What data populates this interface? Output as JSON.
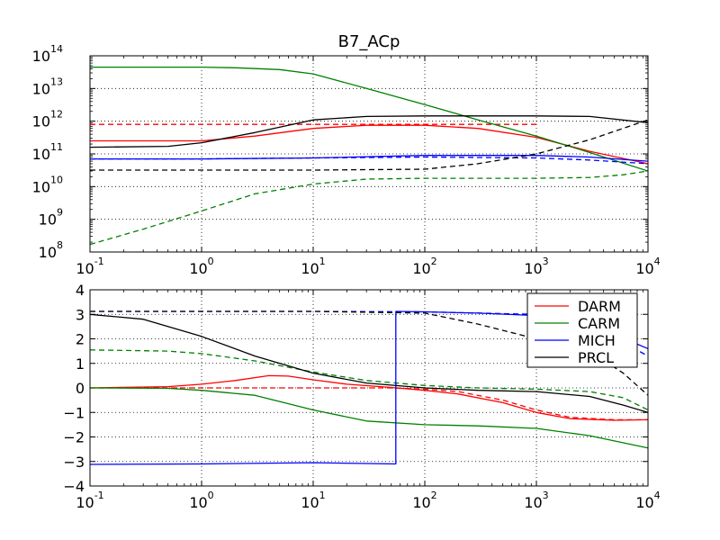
{
  "chart_data": [
    {
      "type": "line",
      "title": "B7_ACp",
      "xscale": "log",
      "yscale": "log",
      "xlim": [
        0.1,
        10000
      ],
      "ylim": [
        100000000.0,
        100000000000000.0
      ],
      "grid": true,
      "x_ticks": [
        {
          "base": "10",
          "exp": "-1"
        },
        {
          "base": "10",
          "exp": "0"
        },
        {
          "base": "10",
          "exp": "1"
        },
        {
          "base": "10",
          "exp": "2"
        },
        {
          "base": "10",
          "exp": "3"
        },
        {
          "base": "10",
          "exp": "4"
        }
      ],
      "y_ticks": [
        {
          "base": "10",
          "exp": "8"
        },
        {
          "base": "10",
          "exp": "9"
        },
        {
          "base": "10",
          "exp": "10"
        },
        {
          "base": "10",
          "exp": "11"
        },
        {
          "base": "10",
          "exp": "12"
        },
        {
          "base": "10",
          "exp": "13"
        },
        {
          "base": "10",
          "exp": "14"
        }
      ],
      "series": [
        {
          "name": "DARM",
          "color": "#ff0000",
          "style": "solid",
          "points": [
            [
              0.1,
              250000000000.0
            ],
            [
              1,
              250000000000.0
            ],
            [
              3,
              350000000000.0
            ],
            [
              10,
              600000000000.0
            ],
            [
              30,
              750000000000.0
            ],
            [
              100,
              750000000000.0
            ],
            [
              300,
              600000000000.0
            ],
            [
              1000,
              320000000000.0
            ],
            [
              3000,
              120000000000.0
            ],
            [
              10000,
              50000000000.0
            ]
          ]
        },
        {
          "name": "DARM",
          "color": "#ff0000",
          "style": "dashed",
          "points": [
            [
              0.1,
              800000000000.0
            ],
            [
              1,
              800000000000.0
            ],
            [
              10,
              800000000000.0
            ],
            [
              100,
              800000000000.0
            ],
            [
              1000,
              800000000000.0
            ]
          ]
        },
        {
          "name": "CARM",
          "color": "#008000",
          "style": "solid",
          "points": [
            [
              0.1,
              45000000000000.0
            ],
            [
              1,
              45000000000000.0
            ],
            [
              2,
              43000000000000.0
            ],
            [
              5,
              38000000000000.0
            ],
            [
              10,
              28000000000000.0
            ],
            [
              30,
              10000000000000.0
            ],
            [
              100,
              3200000000000.0
            ],
            [
              300,
              1100000000000.0
            ],
            [
              1000,
              350000000000.0
            ],
            [
              3000,
              110000000000.0
            ],
            [
              10000,
              30000000000.0
            ]
          ]
        },
        {
          "name": "CARM",
          "color": "#008000",
          "style": "dashed",
          "points": [
            [
              0.1,
              170000000.0
            ],
            [
              0.3,
              500000000.0
            ],
            [
              1,
              1800000000.0
            ],
            [
              3,
              6000000000.0
            ],
            [
              10,
              12000000000.0
            ],
            [
              30,
              17000000000.0
            ],
            [
              100,
              18000000000.0
            ],
            [
              1000,
              18000000000.0
            ],
            [
              3000,
              19000000000.0
            ],
            [
              6000,
              23000000000.0
            ],
            [
              10000,
              30000000000.0
            ]
          ]
        },
        {
          "name": "MICH",
          "color": "#0000ff",
          "style": "solid",
          "points": [
            [
              0.1,
              70000000000.0
            ],
            [
              1,
              70000000000.0
            ],
            [
              10,
              75000000000.0
            ],
            [
              100,
              90000000000.0
            ],
            [
              1000,
              90000000000.0
            ],
            [
              3000,
              80000000000.0
            ],
            [
              10000,
              60000000000.0
            ]
          ]
        },
        {
          "name": "MICH",
          "color": "#0000ff",
          "style": "dashed",
          "points": [
            [
              0.1,
              70000000000.0
            ],
            [
              1,
              70000000000.0
            ],
            [
              10,
              75000000000.0
            ],
            [
              100,
              80000000000.0
            ],
            [
              1000,
              75000000000.0
            ],
            [
              3000,
              65000000000.0
            ],
            [
              10000,
              50000000000.0
            ]
          ]
        },
        {
          "name": "PRCL",
          "color": "#000000",
          "style": "solid",
          "points": [
            [
              0.1,
              160000000000.0
            ],
            [
              0.5,
              170000000000.0
            ],
            [
              1,
              220000000000.0
            ],
            [
              3,
              450000000000.0
            ],
            [
              10,
              1100000000000.0
            ],
            [
              30,
              1400000000000.0
            ],
            [
              100,
              1450000000000.0
            ],
            [
              1000,
              1450000000000.0
            ],
            [
              3000,
              1400000000000.0
            ],
            [
              10000,
              900000000000.0
            ]
          ]
        },
        {
          "name": "PRCL",
          "color": "#000000",
          "style": "dashed",
          "points": [
            [
              0.1,
              32000000000.0
            ],
            [
              10,
              32000000000.0
            ],
            [
              100,
              34000000000.0
            ],
            [
              300,
              50000000000.0
            ],
            [
              1000,
              100000000000.0
            ],
            [
              3000,
              270000000000.0
            ],
            [
              10000,
              1100000000000.0
            ]
          ]
        }
      ]
    },
    {
      "type": "line",
      "xscale": "log",
      "yscale": "linear",
      "xlim": [
        0.1,
        10000
      ],
      "ylim": [
        -4,
        4
      ],
      "grid": true,
      "legend_position": "top-right",
      "legend": [
        {
          "name": "DARM",
          "color": "#ff0000"
        },
        {
          "name": "CARM",
          "color": "#008000"
        },
        {
          "name": "MICH",
          "color": "#0000ff"
        },
        {
          "name": "PRCL",
          "color": "#000000"
        }
      ],
      "x_ticks": [
        {
          "base": "10",
          "exp": "-1"
        },
        {
          "base": "10",
          "exp": "0"
        },
        {
          "base": "10",
          "exp": "1"
        },
        {
          "base": "10",
          "exp": "2"
        },
        {
          "base": "10",
          "exp": "3"
        },
        {
          "base": "10",
          "exp": "4"
        }
      ],
      "y_ticks": [
        "−4",
        "−3",
        "−2",
        "−1",
        "0",
        "1",
        "2",
        "3",
        "4"
      ],
      "y_tick_values": [
        -4,
        -3,
        -2,
        -1,
        0,
        1,
        2,
        3,
        4
      ],
      "series": [
        {
          "name": "DARM",
          "color": "#ff0000",
          "style": "solid",
          "points": [
            [
              0.1,
              0
            ],
            [
              0.5,
              0.05
            ],
            [
              1,
              0.15
            ],
            [
              2,
              0.3
            ],
            [
              4,
              0.5
            ],
            [
              6,
              0.48
            ],
            [
              10,
              0.33
            ],
            [
              20,
              0.15
            ],
            [
              50,
              0.02
            ],
            [
              100,
              -0.1
            ],
            [
              200,
              -0.25
            ],
            [
              500,
              -0.6
            ],
            [
              1000,
              -1.0
            ],
            [
              2000,
              -1.25
            ],
            [
              5000,
              -1.32
            ],
            [
              10000,
              -1.3
            ]
          ]
        },
        {
          "name": "DARM",
          "color": "#ff0000",
          "style": "dashed",
          "points": [
            [
              0.1,
              0
            ],
            [
              1,
              0
            ],
            [
              10,
              0
            ],
            [
              50,
              0
            ],
            [
              100,
              -0.05
            ],
            [
              200,
              -0.15
            ],
            [
              500,
              -0.5
            ],
            [
              1000,
              -0.9
            ],
            [
              2000,
              -1.2
            ],
            [
              5000,
              -1.3
            ],
            [
              10000,
              -1.3
            ]
          ]
        },
        {
          "name": "CARM",
          "color": "#008000",
          "style": "solid",
          "points": [
            [
              0.1,
              0
            ],
            [
              0.5,
              -0.02
            ],
            [
              1,
              -0.1
            ],
            [
              3,
              -0.3
            ],
            [
              10,
              -0.9
            ],
            [
              30,
              -1.35
            ],
            [
              100,
              -1.5
            ],
            [
              300,
              -1.55
            ],
            [
              1000,
              -1.65
            ],
            [
              3000,
              -1.95
            ],
            [
              10000,
              -2.45
            ]
          ]
        },
        {
          "name": "CARM",
          "color": "#008000",
          "style": "dashed",
          "points": [
            [
              0.1,
              1.55
            ],
            [
              0.5,
              1.5
            ],
            [
              1,
              1.4
            ],
            [
              3,
              1.1
            ],
            [
              10,
              0.65
            ],
            [
              30,
              0.3
            ],
            [
              100,
              0.1
            ],
            [
              300,
              0
            ],
            [
              1000,
              -0.05
            ],
            [
              3000,
              -0.15
            ],
            [
              6000,
              -0.4
            ],
            [
              10000,
              -0.9
            ]
          ]
        },
        {
          "name": "MICH",
          "color": "#0000ff",
          "style": "solid",
          "points": [
            [
              0.1,
              -3.12
            ],
            [
              1,
              -3.1
            ],
            [
              10,
              -3.05
            ],
            [
              55,
              -3.1
            ],
            [
              55,
              3.12
            ],
            [
              100,
              3.1
            ],
            [
              300,
              3.05
            ],
            [
              1000,
              2.95
            ],
            [
              3000,
              2.6
            ],
            [
              10000,
              1.6
            ]
          ]
        },
        {
          "name": "MICH",
          "color": "#0000ff",
          "style": "dashed",
          "points": [
            [
              0.1,
              3.12
            ],
            [
              10,
              3.12
            ],
            [
              100,
              3.1
            ],
            [
              1000,
              3.0
            ],
            [
              3000,
              2.6
            ],
            [
              10000,
              1.3
            ]
          ]
        },
        {
          "name": "PRCL",
          "color": "#000000",
          "style": "solid",
          "points": [
            [
              0.1,
              3.0
            ],
            [
              0.3,
              2.8
            ],
            [
              1,
              2.1
            ],
            [
              3,
              1.3
            ],
            [
              10,
              0.6
            ],
            [
              30,
              0.2
            ],
            [
              100,
              0.0
            ],
            [
              300,
              -0.1
            ],
            [
              1000,
              -0.15
            ],
            [
              3000,
              -0.35
            ],
            [
              6000,
              -0.7
            ],
            [
              10000,
              -1.0
            ]
          ]
        },
        {
          "name": "PRCL",
          "color": "#000000",
          "style": "dashed",
          "points": [
            [
              0.1,
              3.12
            ],
            [
              10,
              3.12
            ],
            [
              100,
              3.05
            ],
            [
              300,
              2.6
            ],
            [
              1000,
              2.0
            ],
            [
              3000,
              1.5
            ],
            [
              6000,
              0.6
            ],
            [
              10000,
              -0.3
            ]
          ]
        }
      ]
    }
  ]
}
